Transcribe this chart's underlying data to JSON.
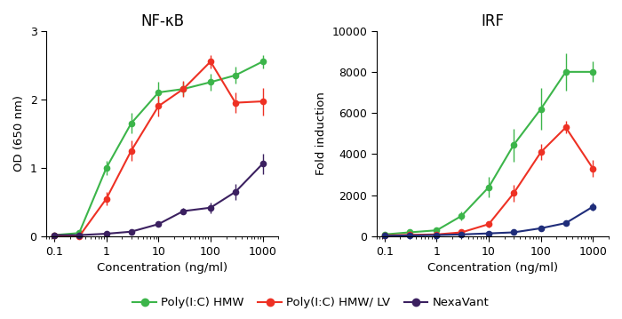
{
  "x_conc": [
    0.1,
    0.3,
    1,
    3,
    10,
    30,
    100,
    300,
    1000
  ],
  "nfkb_green_y": [
    0.02,
    0.05,
    1.0,
    1.65,
    2.1,
    2.15,
    2.25,
    2.35,
    2.55
  ],
  "nfkb_green_err": [
    0.01,
    0.03,
    0.1,
    0.15,
    0.15,
    0.1,
    0.12,
    0.12,
    0.1
  ],
  "nfkb_red_y": [
    0.02,
    0.0,
    0.55,
    1.25,
    1.9,
    2.15,
    2.55,
    1.95,
    1.97
  ],
  "nfkb_red_err": [
    0.01,
    0.02,
    0.1,
    0.15,
    0.15,
    0.12,
    0.1,
    0.15,
    0.2
  ],
  "nfkb_purple_y": [
    0.02,
    0.02,
    0.04,
    0.07,
    0.18,
    0.37,
    0.42,
    0.65,
    1.06
  ],
  "nfkb_purple_err": [
    0.01,
    0.01,
    0.01,
    0.02,
    0.04,
    0.05,
    0.08,
    0.12,
    0.15
  ],
  "irf_green_y": [
    100,
    200,
    300,
    1000,
    2400,
    4450,
    6200,
    8000,
    8000
  ],
  "irf_green_err": [
    50,
    80,
    100,
    200,
    500,
    800,
    1000,
    900,
    500
  ],
  "irf_red_y": [
    50,
    80,
    100,
    200,
    600,
    2100,
    4100,
    5300,
    3300
  ],
  "irf_red_err": [
    30,
    40,
    60,
    80,
    150,
    400,
    400,
    300,
    400
  ],
  "irf_navy_y": [
    30,
    50,
    70,
    100,
    150,
    200,
    400,
    650,
    1450
  ],
  "irf_navy_err": [
    20,
    30,
    30,
    40,
    40,
    60,
    80,
    100,
    200
  ],
  "color_green": "#3cb54a",
  "color_red": "#ee3124",
  "color_purple": "#3b2060",
  "color_navy": "#1f2d7a",
  "nfkb_title": "NF-κB",
  "irf_title": "IRF",
  "nfkb_ylabel": "OD (650 nm)",
  "irf_ylabel": "Fold induction",
  "xlabel": "Concentration (ng/ml)",
  "ylim_nfkb": [
    0,
    3
  ],
  "ylim_irf": [
    0,
    10000
  ],
  "yticks_nfkb": [
    0,
    1,
    2,
    3
  ],
  "yticks_irf": [
    0,
    2000,
    4000,
    6000,
    8000,
    10000
  ],
  "xtick_labels": [
    "0.1",
    "1",
    "10",
    "100",
    "1000"
  ],
  "xtick_vals": [
    0.1,
    1,
    10,
    100,
    1000
  ],
  "legend_labels": [
    "Poly(I:C) HMW",
    "Poly(I:C) HMW/ LV",
    "NexaVant"
  ],
  "legend_colors_left": [
    "#3cb54a",
    "#ee3124",
    "#3b2060"
  ],
  "legend_colors_right": [
    "#3cb54a",
    "#ee3124",
    "#1f2d7a"
  ]
}
